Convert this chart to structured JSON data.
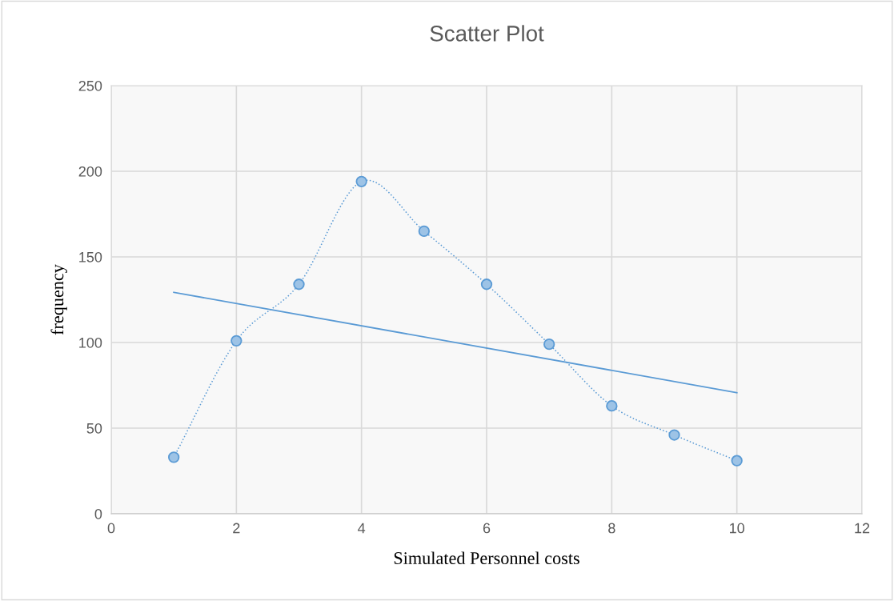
{
  "chart_data": {
    "type": "line",
    "title": "Scatter Plot",
    "xlabel": "Simulated Personnel costs",
    "ylabel": "frequency",
    "x": [
      1,
      2,
      3,
      4,
      5,
      6,
      7,
      8,
      9,
      10
    ],
    "series": [
      {
        "color": "#5b9bd5",
        "marker": "circle",
        "line_style": "dotted",
        "values": [
          33,
          101,
          134,
          194,
          165,
          134,
          99,
          63,
          46,
          31
        ]
      },
      {
        "color": "#5b9bd5",
        "marker": "none",
        "line_style": "solid",
        "x": [
          1,
          10
        ],
        "values": [
          129.3,
          70.7
        ]
      }
    ],
    "xlim": [
      0,
      12
    ],
    "xticks": [
      0,
      2,
      4,
      6,
      8,
      10,
      12
    ],
    "ylim": [
      0,
      250
    ],
    "yticks": [
      0,
      50,
      100,
      150,
      200,
      250
    ],
    "grid": true
  }
}
